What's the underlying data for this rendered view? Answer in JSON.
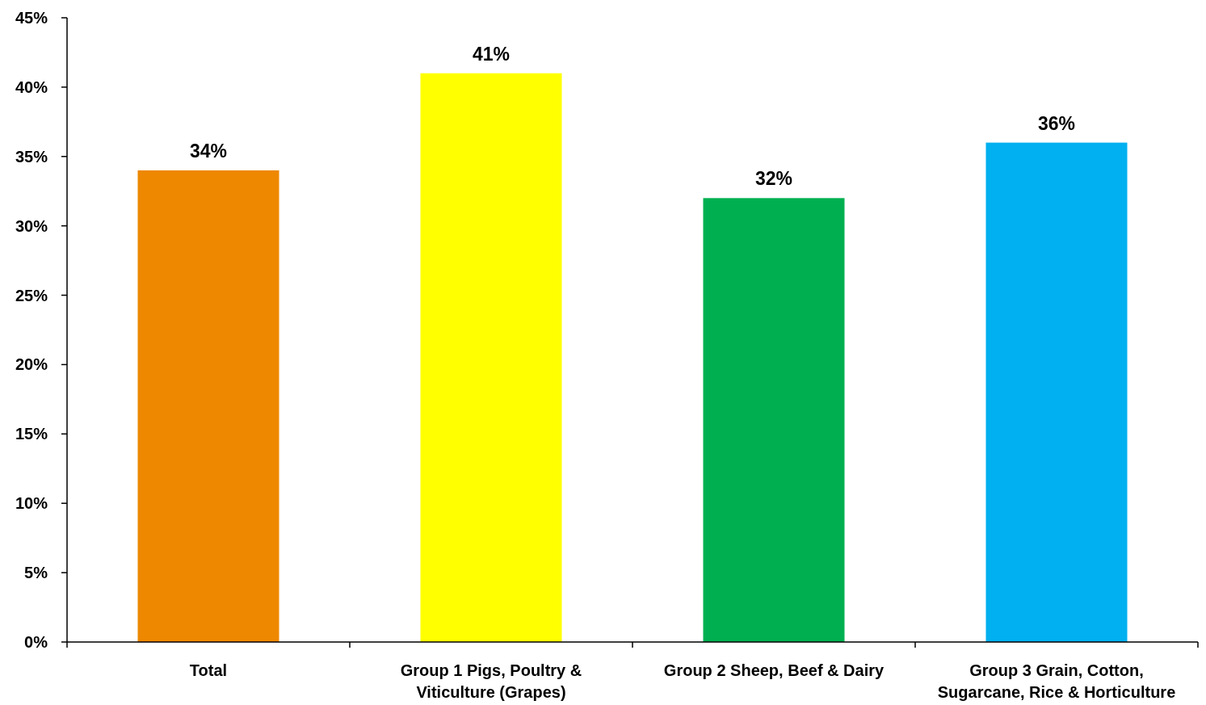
{
  "chart_data": {
    "type": "bar",
    "categories": [
      "Total",
      "Group 1 Pigs, Poultry & Viticulture (Grapes)",
      "Group 2 Sheep, Beef & Dairy",
      "Group 3 Grain, Cotton, Sugarcane, Rice & Horticulture"
    ],
    "values": [
      34,
      41,
      32,
      36
    ],
    "colors": [
      "#ee8800",
      "#ffff00",
      "#00b050",
      "#00b0f0"
    ],
    "value_labels": [
      "34%",
      "41%",
      "32%",
      "36%"
    ],
    "ylim": [
      0,
      45
    ],
    "yticks": [
      {
        "value": 0,
        "label": "0%"
      },
      {
        "value": 5,
        "label": "5%"
      },
      {
        "value": 10,
        "label": "10%"
      },
      {
        "value": 15,
        "label": "15%"
      },
      {
        "value": 20,
        "label": "20%"
      },
      {
        "value": 25,
        "label": "25%"
      },
      {
        "value": 30,
        "label": "30%"
      },
      {
        "value": 35,
        "label": "35%"
      },
      {
        "value": 40,
        "label": "40%"
      },
      {
        "value": 45,
        "label": "45%"
      }
    ]
  }
}
